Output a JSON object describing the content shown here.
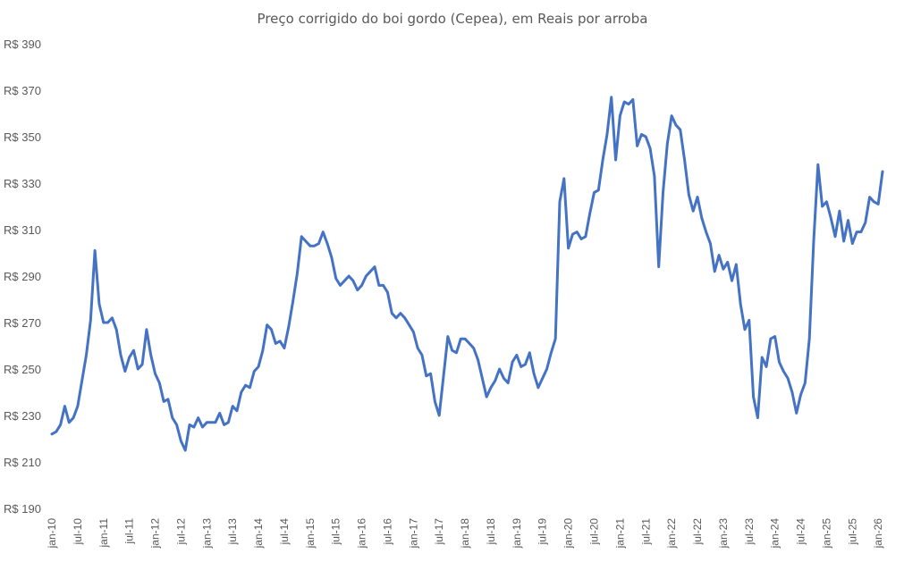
{
  "chart_data": {
    "type": "line",
    "title": "Preço corrigido do boi gordo (Cepea), em Reais por arroba",
    "xlabel": "",
    "ylabel": "",
    "ylim": [
      190,
      390
    ],
    "y_ticks": [
      190,
      210,
      230,
      250,
      270,
      290,
      310,
      330,
      350,
      370,
      390
    ],
    "y_tick_labels": [
      "R$ 190",
      "R$ 210",
      "R$ 230",
      "R$ 250",
      "R$ 270",
      "R$ 290",
      "R$ 310",
      "R$ 330",
      "R$ 350",
      "R$ 370",
      "R$ 390"
    ],
    "x_tick_labels": [
      "jan-10",
      "jul-10",
      "jan-11",
      "jul-11",
      "jan-12",
      "jul-12",
      "jan-13",
      "jul-13",
      "jan-14",
      "jul-14",
      "jan-15",
      "jul-15",
      "jan-16",
      "jul-16",
      "jan-17",
      "jul-17",
      "jan-18",
      "jul-18",
      "jan-19",
      "jul-19",
      "jan-20",
      "jul-20",
      "jan-21",
      "jul-21",
      "jan-22",
      "jul-22",
      "jan-23",
      "jul-23",
      "jan-24",
      "jul-24",
      "jan-25",
      "jul-25",
      "jan-26"
    ],
    "grid": false,
    "line_color": "#4472C4",
    "series": [
      {
        "name": "Preço corrigido do boi gordo",
        "start": "jan-10",
        "frequency": "monthly",
        "values": [
          222,
          223,
          226,
          234,
          227,
          229,
          234,
          245,
          256,
          271,
          301,
          278,
          270,
          270,
          272,
          267,
          256,
          249,
          255,
          258,
          250,
          252,
          267,
          256,
          248,
          244,
          236,
          237,
          229,
          226,
          219,
          215,
          226,
          225,
          229,
          225,
          227,
          227,
          227,
          231,
          226,
          227,
          234,
          232,
          240,
          243,
          242,
          249,
          251,
          258,
          269,
          267,
          261,
          262,
          259,
          268,
          279,
          291,
          307,
          305,
          303,
          303,
          304,
          309,
          304,
          298,
          289,
          286,
          288,
          290,
          288,
          284,
          286,
          290,
          292,
          294,
          286,
          286,
          283,
          274,
          272,
          274,
          272,
          269,
          266,
          259,
          256,
          247,
          248,
          236,
          230,
          247,
          264,
          258,
          257,
          263,
          263,
          261,
          259,
          254,
          246,
          238,
          242,
          245,
          250,
          246,
          244,
          253,
          256,
          251,
          252,
          257,
          248,
          242,
          246,
          250,
          257,
          263,
          322,
          332,
          302,
          308,
          309,
          306,
          307,
          317,
          326,
          327,
          340,
          351,
          367,
          340,
          359,
          365,
          364,
          366,
          346,
          351,
          350,
          345,
          333,
          294,
          326,
          347,
          359,
          355,
          353,
          340,
          325,
          318,
          324,
          315,
          309,
          304,
          292,
          299,
          293,
          296,
          288,
          295,
          278,
          267,
          271,
          238,
          229,
          255,
          251,
          263,
          264,
          253,
          249,
          246,
          240,
          231,
          239,
          244,
          263,
          305,
          338,
          320,
          322,
          315,
          307,
          318,
          305,
          314,
          304,
          309,
          309,
          313,
          324,
          322,
          321,
          335
        ]
      }
    ]
  }
}
